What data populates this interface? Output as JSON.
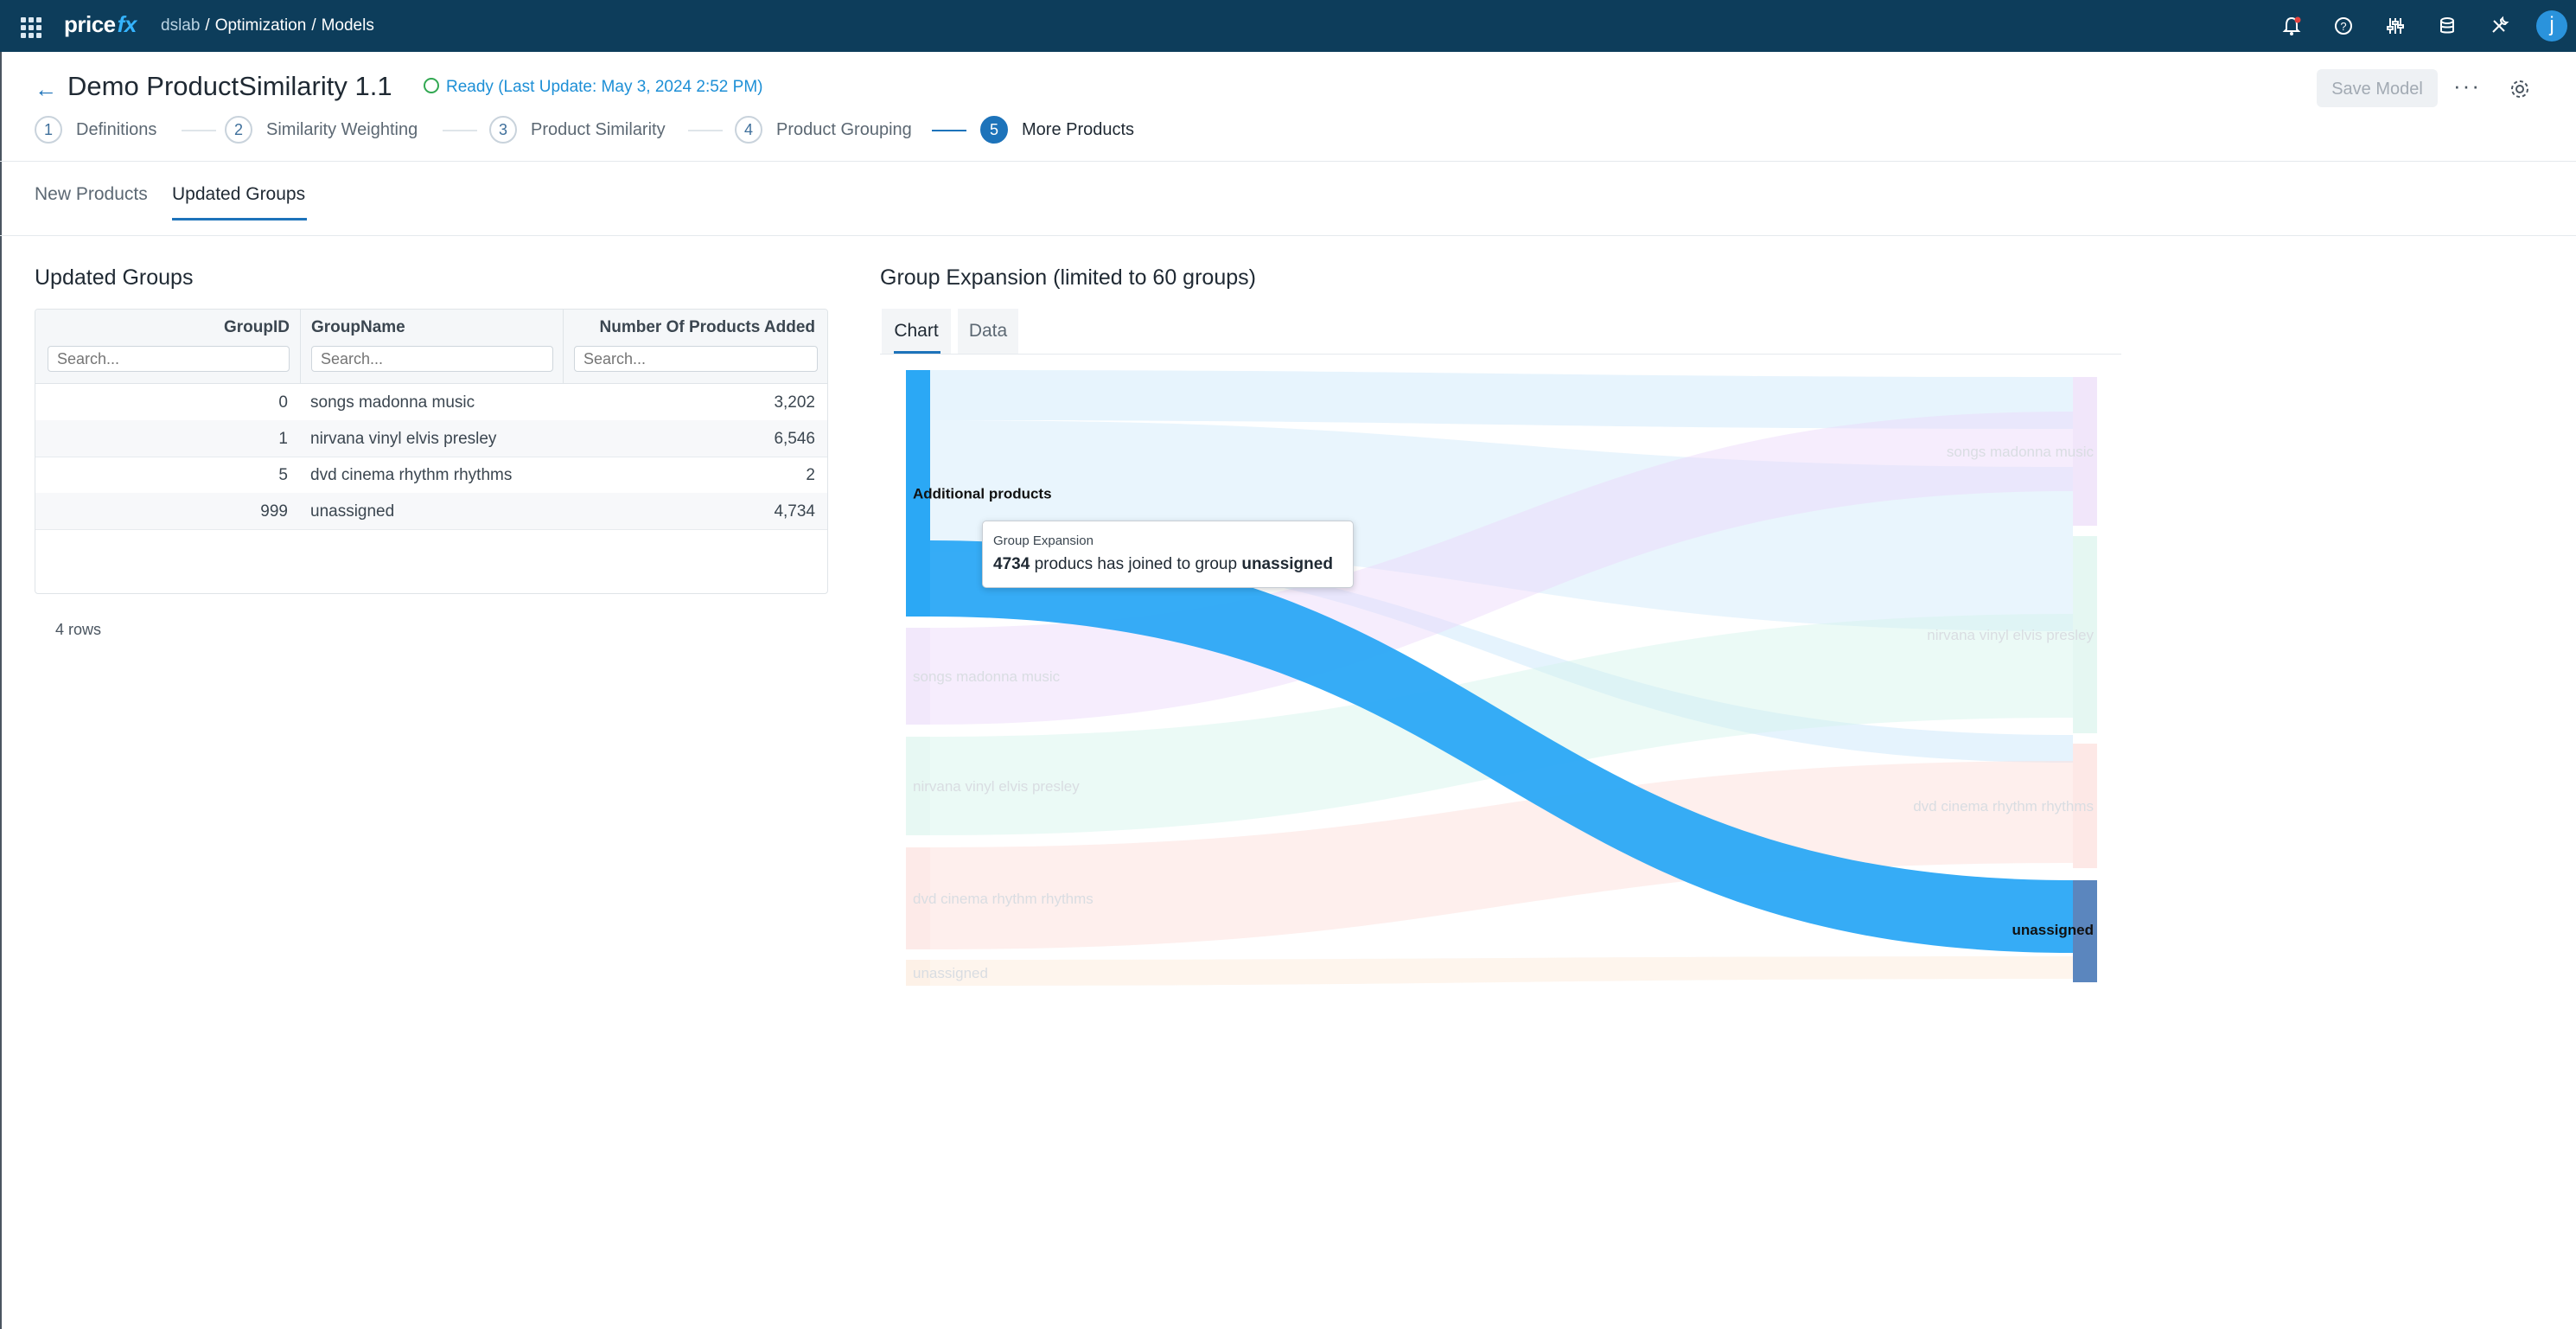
{
  "topbar": {
    "logo_text": "price",
    "logo_fx": "fx",
    "breadcrumb": [
      "dslab",
      "Optimization",
      "Models"
    ],
    "avatar_letter": "j"
  },
  "header": {
    "title": "Demo ProductSimilarity 1.1",
    "status": "Ready (Last Update: May 3, 2024 2:52 PM)",
    "save_label": "Save Model",
    "more_label": "···"
  },
  "steps": [
    {
      "num": "1",
      "label": "Definitions"
    },
    {
      "num": "2",
      "label": "Similarity Weighting"
    },
    {
      "num": "3",
      "label": "Product Similarity"
    },
    {
      "num": "4",
      "label": "Product Grouping"
    },
    {
      "num": "5",
      "label": "More Products"
    }
  ],
  "tabs": [
    "New Products",
    "Updated Groups"
  ],
  "left": {
    "title": "Updated Groups",
    "columns": [
      "GroupID",
      "GroupName",
      "Number Of Products Added"
    ],
    "search_placeholder": "Search...",
    "rows": [
      {
        "id": "0",
        "name": "songs madonna music",
        "count": "3,202"
      },
      {
        "id": "1",
        "name": "nirvana vinyl elvis presley",
        "count": "6,546"
      },
      {
        "id": "5",
        "name": "dvd cinema rhythm rhythms",
        "count": "2"
      },
      {
        "id": "999",
        "name": "unassigned",
        "count": "4,734"
      }
    ],
    "row_count": "4 rows"
  },
  "right": {
    "title": "Group Expansion (limited to 60 groups)",
    "tab_chart": "Chart",
    "tab_data": "Data"
  },
  "tooltip": {
    "title": "Group Expansion",
    "value": "4734",
    "text": "producs has joined to group",
    "group": "unassigned"
  },
  "chart_data": {
    "type": "sankey",
    "source_nodes": [
      "Additional products",
      "songs madonna music",
      "nirvana vinyl elvis presley",
      "dvd cinema rhythm rhythms",
      "unassigned"
    ],
    "target_nodes": [
      "songs madonna music",
      "nirvana vinyl elvis presley",
      "dvd cinema rhythm rhythms",
      "unassigned"
    ],
    "links": [
      {
        "source": "Additional products",
        "target": "songs madonna music",
        "value": 3202
      },
      {
        "source": "Additional products",
        "target": "nirvana vinyl elvis presley",
        "value": 6546
      },
      {
        "source": "Additional products",
        "target": "dvd cinema rhythm rhythms",
        "value": 2
      },
      {
        "source": "Additional products",
        "target": "unassigned",
        "value": 4734
      }
    ],
    "highlighted": "unassigned",
    "colors": {
      "additional": "#2ba8f5",
      "songs": "#e8d5f7",
      "nirvana": "#d3f2ea",
      "dvd": "#fbd9d6",
      "unassigned": "#fbe6d4",
      "unassigned_target": "#5b86be"
    }
  }
}
